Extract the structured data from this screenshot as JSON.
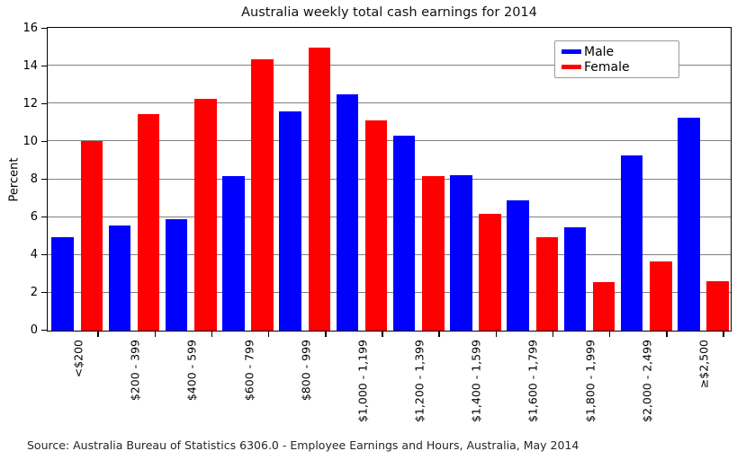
{
  "title": "Australia weekly total cash earnings for 2014",
  "source_note": "Source: Australia Bureau of Statistics 6306.0 - Employee Earnings and Hours, Australia, May 2014",
  "chart_data": {
    "type": "bar",
    "title": "Australia weekly total cash earnings for 2014",
    "xlabel": "",
    "ylabel": "Percent",
    "ylim": [
      0,
      16
    ],
    "yticks": [
      0,
      2,
      4,
      6,
      8,
      10,
      12,
      14,
      16
    ],
    "grid": true,
    "legend_position": "upper right",
    "categories": [
      "<$200",
      "$200 - 399",
      "$400 - 599",
      "$600 - 799",
      "$800 - 999",
      "$1,000 - 1,199",
      "$1,200 - 1,399",
      "$1,400 - 1,599",
      "$1,600 - 1,799",
      "$1,800 - 1,999",
      "$2,000 - 2,499",
      "≥$2,500"
    ],
    "series": [
      {
        "name": "Male",
        "color": "#0000ff",
        "values": [
          4.95,
          5.55,
          5.9,
          8.15,
          11.6,
          12.5,
          10.3,
          8.2,
          6.9,
          5.45,
          9.25,
          11.25
        ]
      },
      {
        "name": "Female",
        "color": "#ff0000",
        "values": [
          10.0,
          11.45,
          12.25,
          14.35,
          14.95,
          11.1,
          8.15,
          6.15,
          4.95,
          2.55,
          3.65,
          2.6
        ]
      }
    ],
    "colors": {
      "grid": "#808080",
      "frame": "#000000",
      "male": "#0000ff",
      "female": "#ff0000"
    }
  }
}
